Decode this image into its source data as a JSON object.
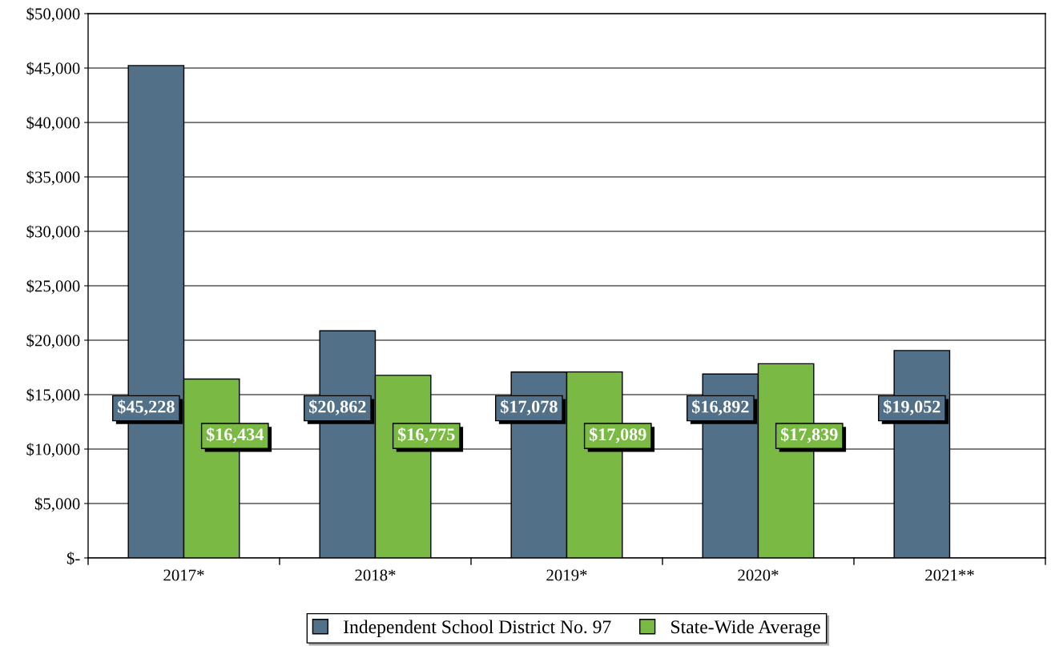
{
  "chart_data": {
    "type": "bar",
    "categories": [
      "2017*",
      "2018*",
      "2019*",
      "2020*",
      "2021**"
    ],
    "series": [
      {
        "name": "Independent School District No. 97",
        "color": "#527189",
        "values": [
          45228,
          20862,
          17078,
          16892,
          19052
        ],
        "value_labels": [
          "$45,228",
          "$20,862",
          "$17,078",
          "$16,892",
          "$19,052"
        ]
      },
      {
        "name": "State-Wide Average",
        "color": "#7aba44",
        "values": [
          16434,
          16775,
          17089,
          17839,
          null
        ],
        "value_labels": [
          "$16,434",
          "$16,775",
          "$17,089",
          "$17,839",
          null
        ]
      }
    ],
    "ylim": [
      0,
      50000
    ],
    "yticks": [
      {
        "value": 0,
        "label": "$-"
      },
      {
        "value": 5000,
        "label": "$5,000"
      },
      {
        "value": 10000,
        "label": "$10,000"
      },
      {
        "value": 15000,
        "label": "$15,000"
      },
      {
        "value": 20000,
        "label": "$20,000"
      },
      {
        "value": 25000,
        "label": "$25,000"
      },
      {
        "value": 30000,
        "label": "$30,000"
      },
      {
        "value": 35000,
        "label": "$35,000"
      },
      {
        "value": 40000,
        "label": "$40,000"
      },
      {
        "value": 45000,
        "label": "$45,000"
      },
      {
        "value": 50000,
        "label": "$50,000"
      }
    ],
    "grid": "y",
    "legend": "bottom"
  }
}
